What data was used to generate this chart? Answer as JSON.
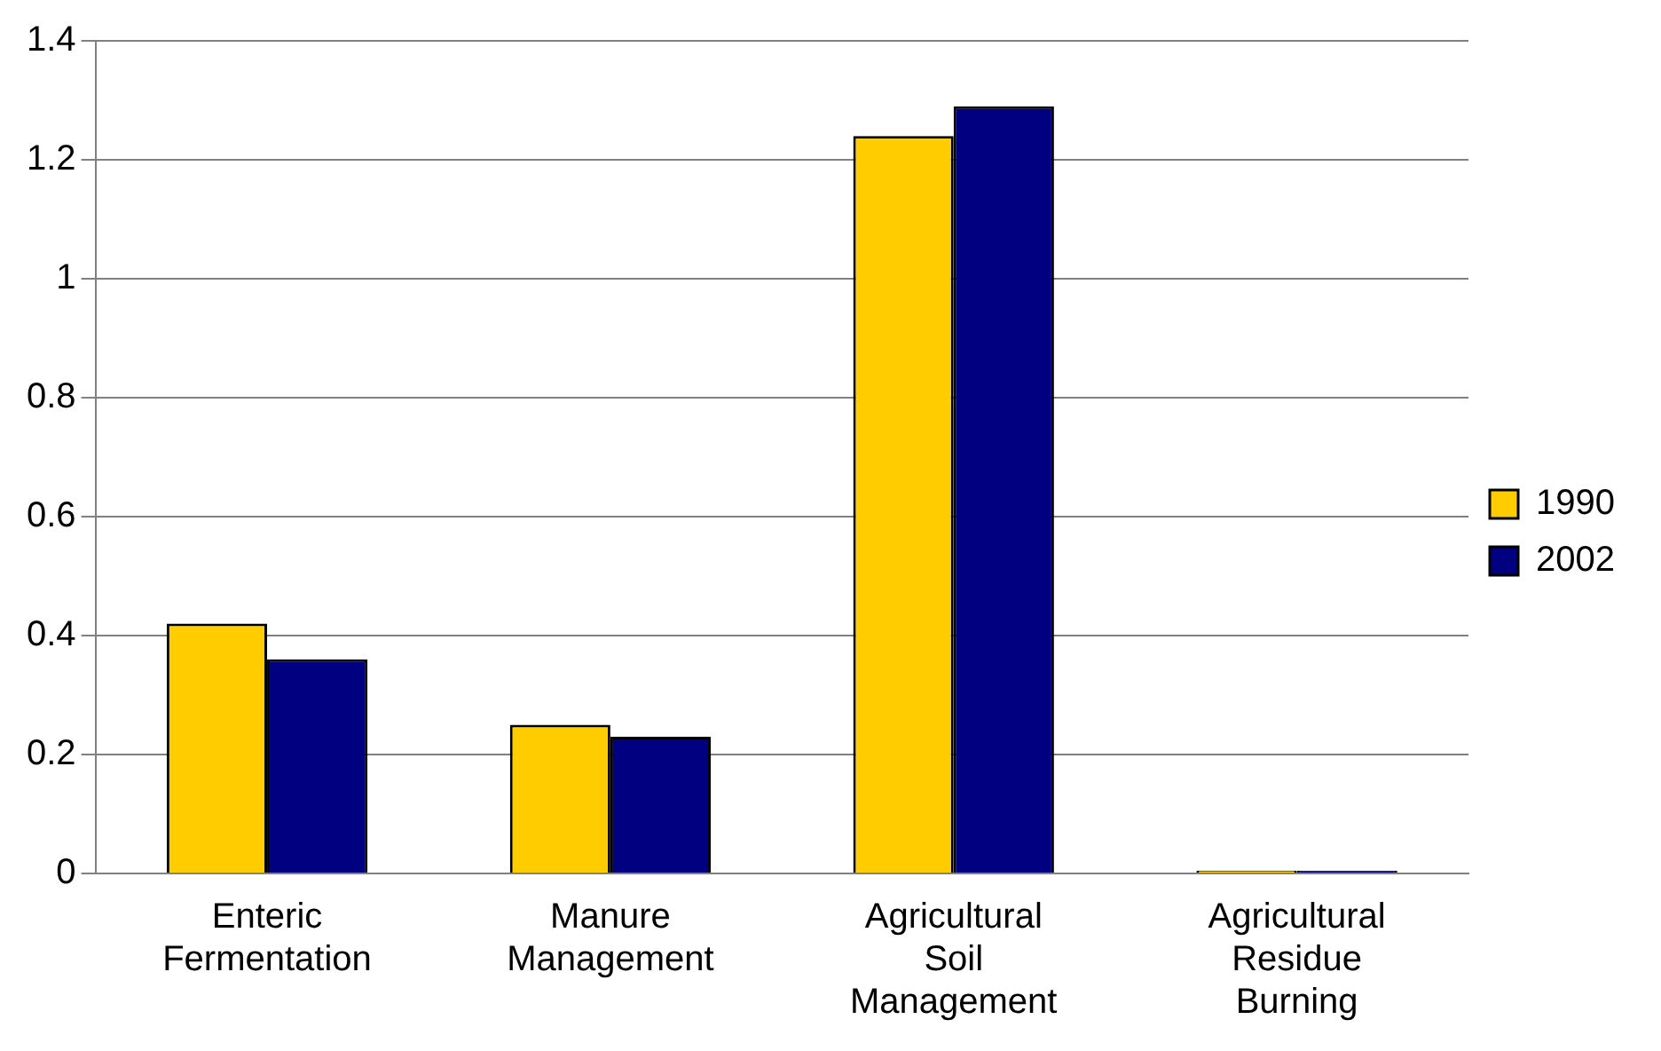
{
  "chart_data": {
    "type": "bar",
    "categories": [
      "Enteric Fermentation",
      "Manure Management",
      "Agricultural Soil Management",
      "Agricultural Residue Burning"
    ],
    "series": [
      {
        "name": "1990",
        "color": "#ffcc00",
        "values": [
          0.42,
          0.25,
          1.24,
          0.005
        ]
      },
      {
        "name": "2002",
        "color": "#000080",
        "values": [
          0.36,
          0.23,
          1.29,
          0.005
        ]
      }
    ],
    "ylim": [
      0,
      1.4
    ],
    "yticks": [
      0,
      0.2,
      0.4,
      0.6,
      0.8,
      1,
      1.2,
      1.4
    ],
    "grid": "y",
    "legend": "right"
  }
}
